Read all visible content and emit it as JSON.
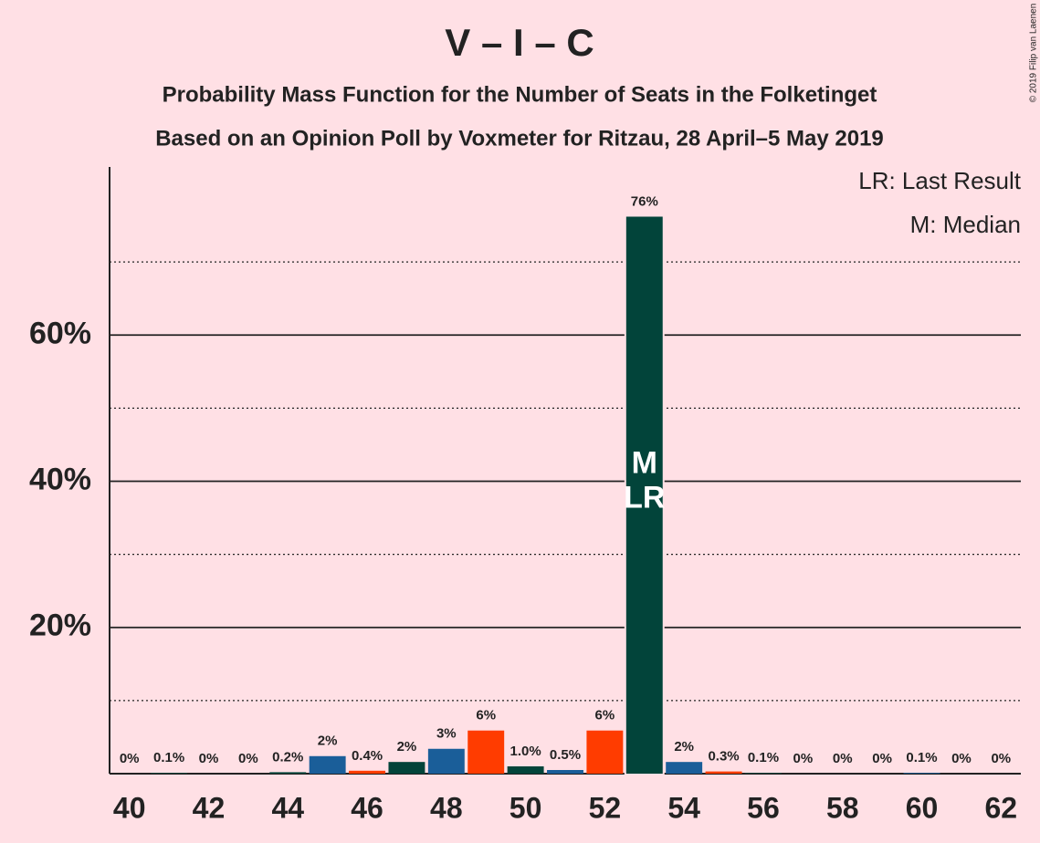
{
  "chart_data": {
    "type": "bar",
    "title": "V – I – C",
    "subtitle": [
      "Probability Mass Function for the Number of Seats in the Folketinget",
      "Based on an Opinion Poll by Voxmeter for Ritzau, 28 April–5 May 2019"
    ],
    "copyright": "© 2019 Filip van Laenen",
    "legend": [
      "LR: Last Result",
      "M: Median"
    ],
    "x": [
      40,
      41,
      42,
      43,
      44,
      45,
      46,
      47,
      48,
      49,
      50,
      51,
      52,
      53,
      54,
      55,
      56,
      57,
      58,
      59,
      60,
      61,
      62
    ],
    "values": [
      0,
      0.1,
      0,
      0,
      0.2,
      2.4,
      0.4,
      1.6,
      3.4,
      5.9,
      1.0,
      0.5,
      5.9,
      76.2,
      1.6,
      0.3,
      0.1,
      0,
      0,
      0,
      0.1,
      0,
      0
    ],
    "value_labels": [
      "0%",
      "0.1%",
      "0%",
      "0%",
      "0.2%",
      "2%",
      "0.4%",
      "2%",
      "3%",
      "6%",
      "1.0%",
      "0.5%",
      "6%",
      "76%",
      "2%",
      "0.3%",
      "0.1%",
      "0%",
      "0%",
      "0%",
      "0.1%",
      "0%",
      "0%"
    ],
    "colors": [
      "#ff3c00",
      "#02443a",
      "#1a5e99",
      "#ff3c00",
      "#02443a",
      "#1a5e99",
      "#ff3c00",
      "#02443a",
      "#1a5e99",
      "#ff3c00",
      "#02443a",
      "#1a5e99",
      "#ff3c00",
      "#02443a",
      "#1a5e99",
      "#ff3c00",
      "#02443a",
      "#1a5e99",
      "#ff3c00",
      "#02443a",
      "#1a5e99",
      "#ff3c00",
      "#02443a"
    ],
    "annotations": [
      {
        "x": 53,
        "text": "M"
      },
      {
        "x": 53,
        "text": "LR"
      }
    ],
    "xlim": [
      39.5,
      62.5
    ],
    "xticks": [
      40,
      42,
      44,
      46,
      48,
      50,
      52,
      54,
      56,
      58,
      60,
      62
    ],
    "ylim": [
      0,
      83
    ],
    "yticks": [
      {
        "value": 20,
        "label": "20%"
      },
      {
        "value": 40,
        "label": "40%"
      },
      {
        "value": 60,
        "label": "60%"
      }
    ],
    "minor_yticks": [
      10,
      30,
      50,
      70
    ],
    "grid": true
  }
}
